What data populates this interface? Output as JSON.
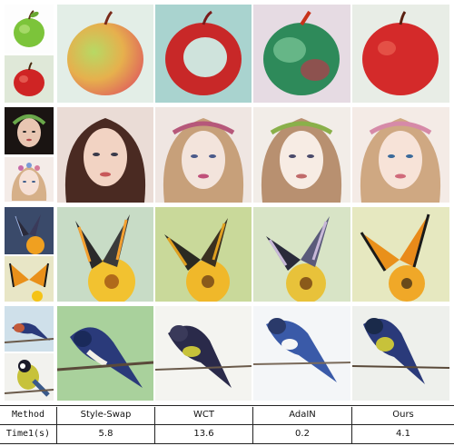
{
  "table": {
    "header_label": "Method",
    "time_label": "Time1(s)",
    "methods": [
      "Style-Swap",
      "WCT",
      "AdaIN",
      "Ours"
    ],
    "times": [
      "5.8",
      "13.6",
      "0.2",
      "4.1"
    ]
  },
  "rows": [
    "apple",
    "portrait",
    "butterfly",
    "bird"
  ],
  "colors": {
    "apple_green": "#8ecf3a",
    "apple_red": "#d42a2a",
    "skin": "#f2d3c3",
    "hair": "#4a2a1c",
    "butterfly_orange": "#e9901a",
    "flower_yellow": "#f5c316",
    "bird_blue": "#2a3a7a",
    "bird_yellow": "#c7c23a"
  }
}
